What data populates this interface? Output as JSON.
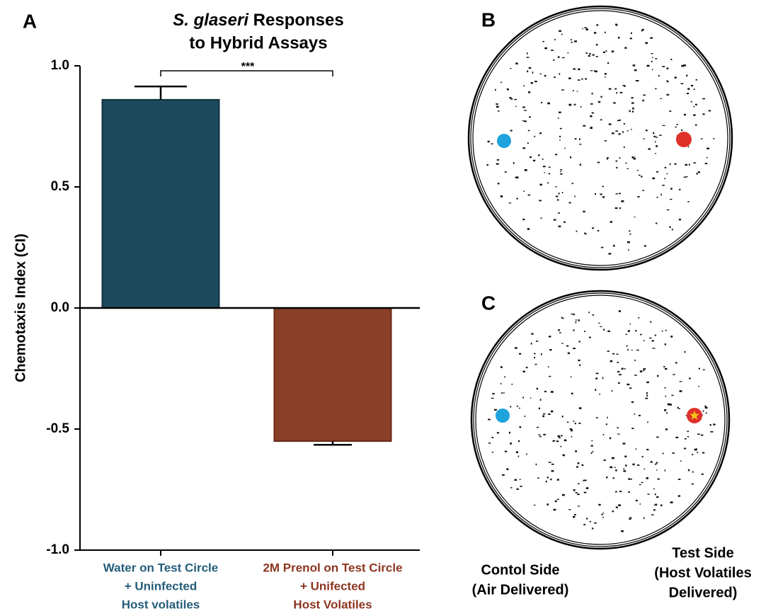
{
  "chart_data": {
    "type": "bar",
    "panel": "A",
    "title_italic": "S. glaseri",
    "title": [
      "Responses",
      "to Hybrid Assays"
    ],
    "ylabel": "Chemotaxis Index (CI)",
    "categories": [
      [
        "Water on Test Circle",
        "+ Uninfected",
        "Host volatiles"
      ],
      [
        "2M Prenol on Test Circle",
        "+ Unifected",
        "Host Volatiles"
      ]
    ],
    "values": [
      0.86,
      -0.55
    ],
    "errors": [
      0.055,
      0.015
    ],
    "colors": [
      "#1b4a5c",
      "#8a3f29"
    ],
    "label_colors": [
      "#245d7a",
      "#8c3520"
    ],
    "significance": "***",
    "ylim": [
      -1,
      1
    ],
    "yticks": [
      {
        "value": 1,
        "label": "1.0"
      },
      0.5,
      {
        "value": 0,
        "label": "0.0"
      },
      -0.5,
      {
        "value": -1,
        "label": "-1.0"
      }
    ]
  },
  "panels": [
    {
      "label": "B"
    },
    {
      "label": "C"
    }
  ],
  "sides": {
    "control": [
      "Contol Side",
      "(Air Delivered)"
    ],
    "test": [
      "Test Side",
      "(Host Volatiles",
      "Delivered)"
    ]
  }
}
